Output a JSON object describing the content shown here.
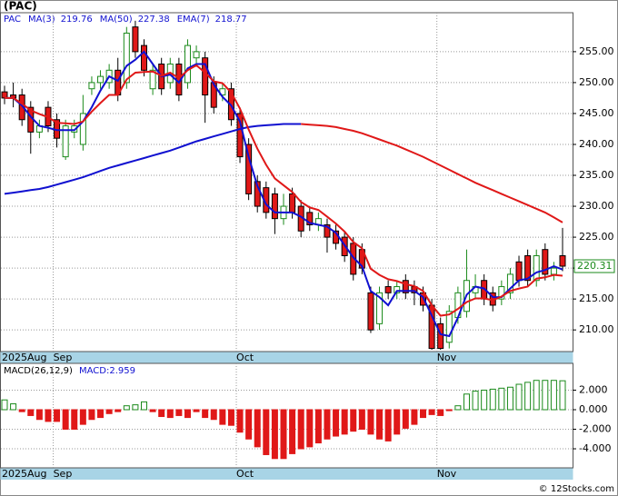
{
  "chart_data": {
    "type": "candlestick",
    "title": "(PAC)",
    "ticker": "PAC",
    "watermark": "© 12Stocks.com",
    "categories": [
      "2025Aug",
      null,
      null,
      null,
      null,
      null,
      "Sep",
      null,
      null,
      null,
      null,
      null,
      null,
      null,
      null,
      null,
      null,
      null,
      null,
      null,
      null,
      null,
      null,
      null,
      null,
      null,
      null,
      "Oct",
      null,
      null,
      null,
      null,
      null,
      null,
      null,
      null,
      null,
      null,
      null,
      null,
      null,
      null,
      null,
      null,
      null,
      null,
      null,
      null,
      null,
      null,
      "Nov",
      null,
      null,
      null,
      null,
      null,
      null,
      null,
      null,
      null,
      null,
      null,
      null,
      null,
      null
    ],
    "candles": {
      "up_color": "#1a8a1a",
      "down_color": "#e01818",
      "open": [
        248.5,
        248,
        248,
        246,
        242,
        246,
        244,
        238,
        242,
        240,
        249,
        250,
        250,
        252,
        250,
        259,
        256,
        249,
        253,
        250,
        253,
        250,
        254,
        254,
        250,
        248,
        249,
        245,
        240,
        234,
        233,
        232,
        228,
        232,
        230,
        229,
        227,
        227,
        226,
        225,
        224,
        223,
        216,
        211,
        217,
        216,
        218,
        217,
        216,
        214,
        211,
        208,
        212,
        213,
        216,
        218,
        216,
        215,
        216,
        221,
        222,
        218,
        223,
        219,
        222
      ],
      "high": [
        249.5,
        250,
        249,
        247,
        244,
        247,
        245,
        244,
        244,
        248,
        251,
        252,
        253,
        254,
        259,
        260,
        257,
        253,
        254,
        254,
        254,
        257,
        256,
        255,
        251,
        250,
        250,
        246,
        241,
        235,
        234,
        233,
        232,
        233,
        231,
        230,
        229,
        228,
        227,
        226,
        225,
        224,
        217,
        217,
        218,
        218,
        219,
        218,
        217,
        215,
        212,
        214,
        217,
        223,
        219,
        219,
        217,
        218,
        220,
        222,
        223,
        223,
        224,
        221,
        226.5
      ],
      "low": [
        246.5,
        246,
        243,
        238.5,
        241,
        242,
        239.5,
        237.5,
        241,
        239,
        248,
        249,
        249,
        247,
        249,
        254,
        251,
        248,
        248,
        249,
        247,
        249,
        253,
        243.5,
        245,
        247,
        243,
        237,
        231,
        229,
        228,
        225.5,
        227,
        228,
        225,
        226,
        226,
        222.5,
        223,
        221,
        218,
        219,
        209.5,
        210,
        215,
        215,
        215,
        214,
        213,
        206.8,
        206.8,
        207,
        211,
        212,
        215,
        214,
        213,
        214,
        215,
        217,
        217,
        217,
        218,
        218,
        219.5
      ],
      "close": [
        247.5,
        247.5,
        244,
        242,
        243,
        243,
        241,
        243,
        243,
        245,
        250,
        251,
        252,
        248,
        258,
        255,
        252,
        252,
        249,
        253,
        248,
        256,
        255,
        248,
        246,
        249,
        244,
        238,
        232,
        230,
        229,
        228,
        230,
        229,
        226,
        227,
        228,
        225,
        224,
        222,
        219,
        220,
        210,
        216,
        216,
        217,
        216,
        216,
        214,
        207,
        207,
        213,
        216,
        218,
        217,
        215,
        214,
        217,
        219,
        218,
        218,
        222,
        219,
        220,
        220.31
      ],
      "last_label": "220.31",
      "last_label_color": "#1a8a1a"
    },
    "series": [
      {
        "name": "MA(3)",
        "color": "#1010d0",
        "values": [
          247.5,
          247.5,
          246.3,
          244.5,
          243,
          242.7,
          242.3,
          242.3,
          242.3,
          243.7,
          246,
          248.7,
          251,
          250.3,
          252.7,
          253.7,
          255,
          253,
          251,
          251.3,
          250,
          252.3,
          253,
          253,
          249.7,
          247.7,
          246.3,
          243.7,
          238,
          233.3,
          230.3,
          229,
          229,
          229,
          228.3,
          227.3,
          227,
          226.7,
          225.7,
          223.7,
          221.7,
          220.3,
          216.3,
          215.3,
          214,
          216.3,
          216.3,
          216.3,
          215.3,
          212.3,
          209.3,
          209,
          212,
          215.7,
          217,
          216.7,
          215.3,
          215.3,
          216.7,
          218,
          218.3,
          219.3,
          219.7,
          220.3,
          219.76
        ]
      },
      {
        "name": "MA(50)",
        "color": "#1010d0",
        "down_color": "#e01818",
        "values": [
          232.0,
          232.2,
          232.4,
          232.6,
          232.8,
          233.1,
          233.5,
          233.9,
          234.3,
          234.7,
          235.2,
          235.7,
          236.2,
          236.6,
          237.0,
          237.4,
          237.8,
          238.2,
          238.6,
          239.0,
          239.5,
          240.0,
          240.5,
          240.9,
          241.3,
          241.7,
          242.1,
          242.5,
          242.8,
          243.0,
          243.1,
          243.2,
          243.3,
          243.3,
          243.3,
          243.2,
          243.1,
          243.0,
          242.8,
          242.5,
          242.2,
          241.8,
          241.3,
          240.8,
          240.3,
          239.8,
          239.2,
          238.6,
          238.0,
          237.3,
          236.6,
          235.9,
          235.2,
          234.5,
          233.8,
          233.2,
          232.6,
          232.0,
          231.4,
          230.8,
          230.2,
          229.6,
          229.0,
          228.2,
          227.38
        ]
      },
      {
        "name": "EMA(7)",
        "color": "#e01818",
        "values": [
          247.5,
          247.5,
          246.6,
          245.5,
          244.9,
          244.4,
          243.5,
          243.4,
          243.3,
          243.7,
          245.3,
          246.7,
          248.0,
          248.0,
          250.5,
          251.6,
          251.7,
          251.8,
          251.1,
          251.6,
          250.7,
          252.0,
          252.8,
          251.6,
          250.2,
          249.9,
          248.4,
          245.8,
          242.4,
          239.3,
          236.7,
          234.5,
          233.4,
          232.3,
          230.7,
          229.8,
          229.4,
          228.3,
          227.2,
          225.9,
          224.2,
          223.2,
          219.9,
          218.9,
          218.2,
          217.9,
          217.4,
          217.1,
          216.3,
          214.0,
          212.3,
          212.5,
          213.4,
          214.5,
          215.1,
          215.1,
          214.8,
          215.4,
          216.3,
          216.7,
          217.0,
          218.3,
          218.5,
          218.9,
          218.77
        ]
      }
    ],
    "ylim": [
      206.5,
      261.3
    ],
    "yticks": [
      {
        "value": 210,
        "label": "210.00"
      },
      {
        "value": 215,
        "label": "215.00"
      },
      {
        "value": 220,
        "label": "220.00"
      },
      {
        "value": 225,
        "label": "225.00"
      },
      {
        "value": 230,
        "label": "230.00"
      },
      {
        "value": 235,
        "label": "235.00"
      },
      {
        "value": 240,
        "label": "240.00"
      },
      {
        "value": 245,
        "label": "245.00"
      },
      {
        "value": 250,
        "label": "250.00"
      },
      {
        "value": 255,
        "label": "255.00"
      }
    ],
    "grid": true,
    "macd": {
      "title": "MACD(26,12,9)",
      "label": "MACD:2.959",
      "up_color": "#1a8a1a",
      "down_color": "#e01818",
      "values": [
        1.0,
        0.6,
        -0.2,
        -0.6,
        -1.0,
        -1.2,
        -1.2,
        -2.0,
        -2.0,
        -1.5,
        -1.0,
        -0.8,
        -0.4,
        -0.2,
        0.4,
        0.5,
        0.8,
        -0.2,
        -0.7,
        -0.8,
        -0.6,
        -0.8,
        -0.2,
        -0.8,
        -1.0,
        -1.5,
        -1.6,
        -2.3,
        -3.0,
        -3.8,
        -4.6,
        -5.0,
        -5.0,
        -4.5,
        -4.0,
        -3.8,
        -3.4,
        -3.0,
        -2.7,
        -2.5,
        -2.2,
        -2.0,
        -2.5,
        -3.0,
        -3.2,
        -2.5,
        -1.9,
        -1.5,
        -0.8,
        -0.5,
        -0.6,
        -0.1,
        0.4,
        1.6,
        1.9,
        2.0,
        2.1,
        2.2,
        2.3,
        2.6,
        2.8,
        3.0,
        3.0,
        3.0,
        2.959
      ],
      "ylim": [
        -5.95,
        4.74
      ],
      "yticks": [
        {
          "value": 2,
          "label": "2.000"
        },
        {
          "value": 0,
          "label": "0.000"
        },
        {
          "value": -2,
          "label": "-2.000"
        },
        {
          "value": -4,
          "label": "-4.000"
        }
      ]
    }
  }
}
